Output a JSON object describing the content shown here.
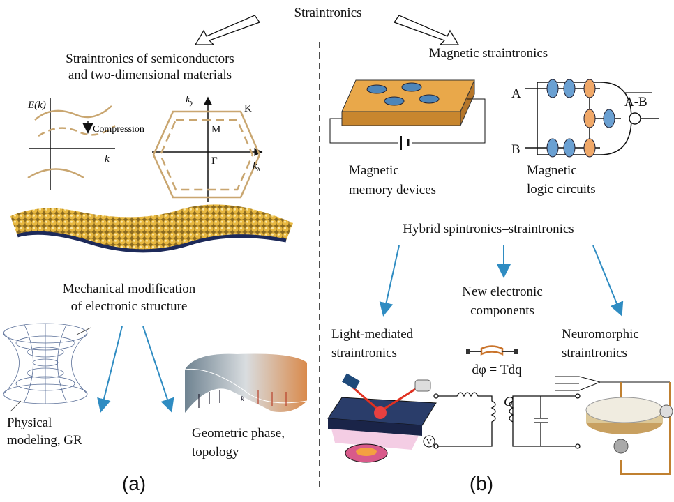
{
  "title": "Straintronics",
  "panel_a": {
    "heading": [
      "Straintronics of semiconductors",
      "and two-dimensional materials"
    ],
    "band_plot": {
      "y_label": "E(k)",
      "x_label": "k",
      "annotation": "Compression"
    },
    "brillouin_zone": {
      "ky": {
        "base": "k",
        "sub": "y"
      },
      "kx": {
        "base": "k",
        "sub": "x"
      },
      "point_k": "K",
      "point_m": "M",
      "point_gamma": "Γ"
    },
    "mechanical": [
      "Mechanical modification",
      "of electronic structure"
    ],
    "physical": [
      "Physical",
      "modeling, GR"
    ],
    "geometric": [
      "Geometric phase,",
      "topology"
    ],
    "mobius_label": "k",
    "label": "(a)"
  },
  "panel_b": {
    "heading": "Magnetic straintronics",
    "memory": [
      "Magnetic",
      "memory devices"
    ],
    "logic": {
      "label": [
        "Magnetic",
        "logic circuits"
      ],
      "input_a": "A",
      "input_b": "B",
      "output": "A-B"
    },
    "hybrid": "Hybrid spintronics–straintronics",
    "new_components": [
      "New electronic",
      "components"
    ],
    "equation": "dφ = Tdq",
    "light": [
      "Light-mediated",
      "straintronics"
    ],
    "neuromorphic": [
      "Neuromorphic",
      "straintronics"
    ],
    "circuit_label": "G",
    "voltmeter": "V",
    "label": "(b)"
  }
}
